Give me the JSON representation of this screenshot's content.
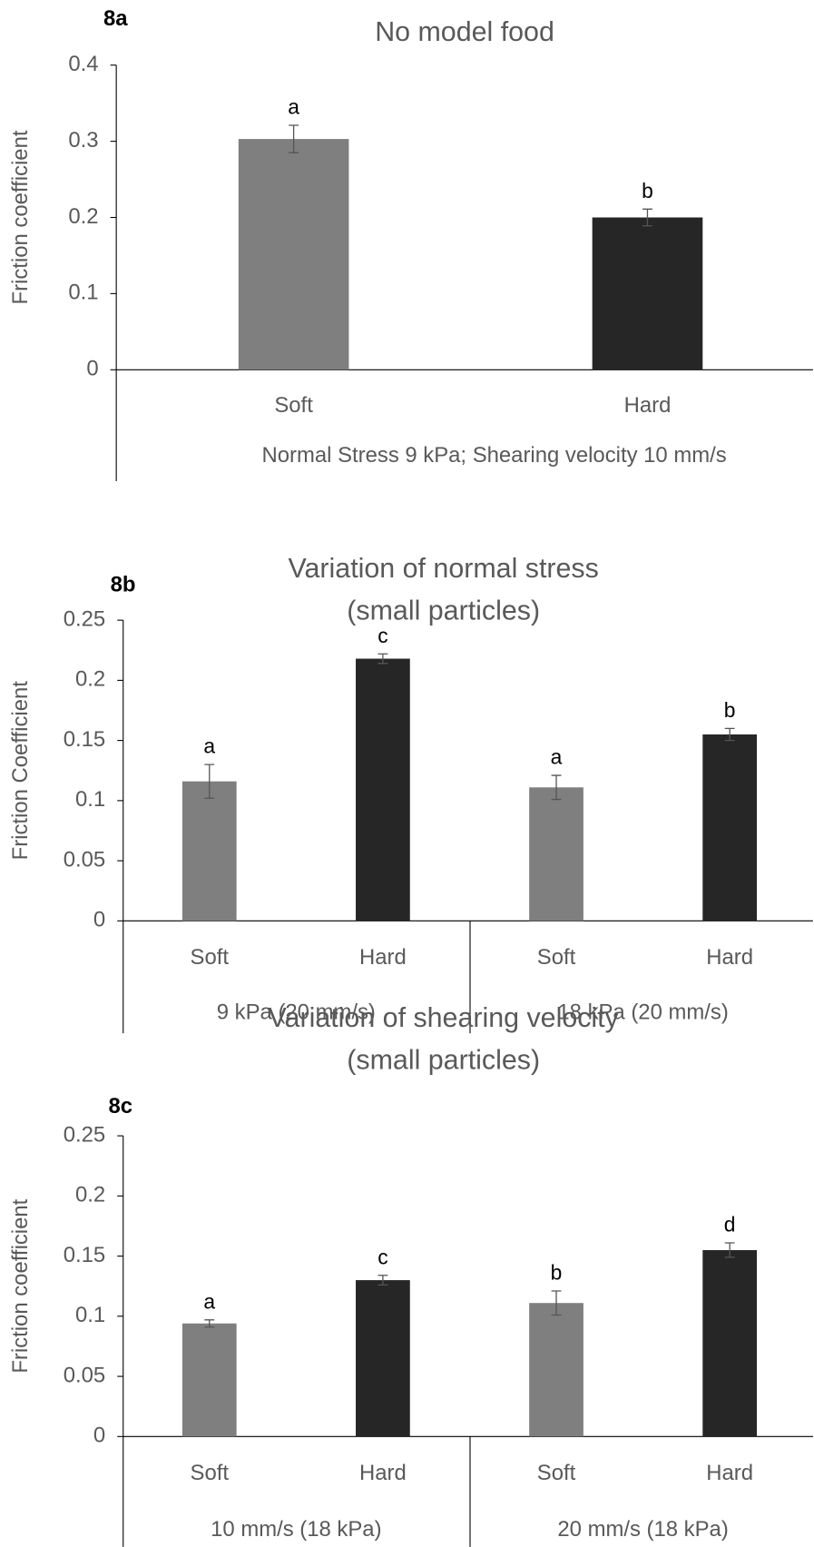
{
  "chart_data": [
    {
      "type": "bar",
      "panel": "8a",
      "title": [
        "No model food"
      ],
      "y_label": "Friction coefficient",
      "x_label": "Normal Stress 9 kPa; Shearing velocity 10 mm/s",
      "categories": [
        "Soft",
        "Hard"
      ],
      "values": [
        0.303,
        0.2
      ],
      "errors": [
        0.018,
        0.011
      ],
      "annotations": [
        "a",
        "b"
      ],
      "colors": [
        "#7f7f7f",
        "#262626"
      ],
      "ylim": [
        0,
        0.4
      ],
      "yticks": [
        0,
        0.1,
        0.2,
        0.3,
        0.4
      ]
    },
    {
      "type": "bar",
      "panel": "8b",
      "title": [
        "Variation of normal stress",
        "(small particles)"
      ],
      "y_label": "Friction Coefficient",
      "groups": [
        "9 kPa (20 mm/s)",
        "18 kPa (20 mm/s)"
      ],
      "categories": [
        "Soft",
        "Hard",
        "Soft",
        "Hard"
      ],
      "values": [
        0.116,
        0.218,
        0.111,
        0.155
      ],
      "errors": [
        0.014,
        0.004,
        0.01,
        0.005
      ],
      "annotations": [
        "a",
        "c",
        "a",
        "b"
      ],
      "colors": [
        "#7f7f7f",
        "#262626",
        "#7f7f7f",
        "#262626"
      ],
      "ylim": [
        0,
        0.25
      ],
      "yticks": [
        0,
        0.05,
        0.1,
        0.15,
        0.2,
        0.25
      ]
    },
    {
      "type": "bar",
      "panel": "8c",
      "title": [
        "Variation of shearing velocity",
        "(small particles)"
      ],
      "y_label": "Friction coefficient",
      "groups": [
        "10 mm/s (18 kPa)",
        "20 mm/s (18 kPa)"
      ],
      "categories": [
        "Soft",
        "Hard",
        "Soft",
        "Hard"
      ],
      "values": [
        0.094,
        0.13,
        0.111,
        0.155
      ],
      "errors": [
        0.003,
        0.004,
        0.01,
        0.006
      ],
      "annotations": [
        "a",
        "c",
        "b",
        "d"
      ],
      "colors": [
        "#7f7f7f",
        "#262626",
        "#7f7f7f",
        "#262626"
      ],
      "ylim": [
        0,
        0.25
      ],
      "yticks": [
        0,
        0.05,
        0.1,
        0.15,
        0.2,
        0.25
      ]
    }
  ]
}
